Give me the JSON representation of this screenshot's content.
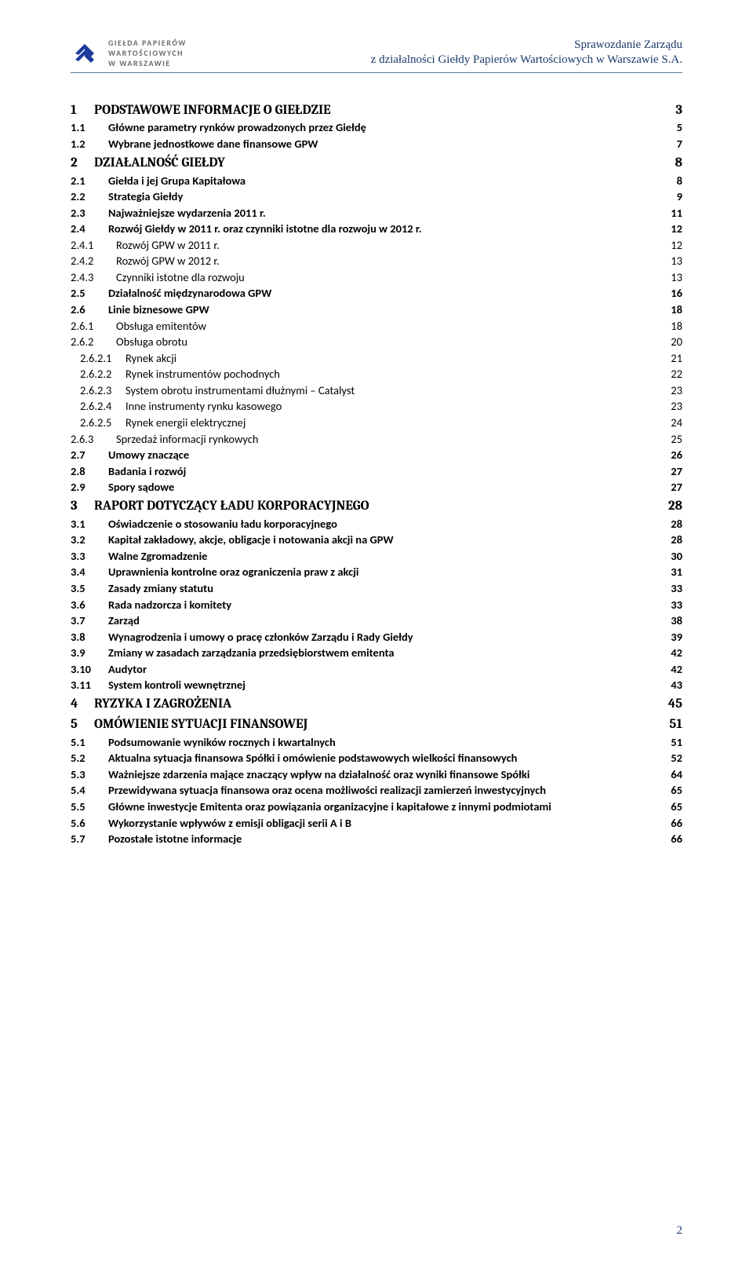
{
  "header": {
    "logo_lines": [
      "GIEŁDA PAPIERÓW",
      "WARTOŚCIOWYCH",
      "W WARSZAWIE"
    ],
    "right_line1": "Sprawozdanie Zarządu",
    "right_line2": "z działalności Giełdy Papierów Wartościowych w Warszawie S.A."
  },
  "toc": [
    {
      "lvl": 1,
      "num": "1",
      "title": "PODSTAWOWE INFORMACJE O GIEŁDZIE",
      "pg": "3"
    },
    {
      "lvl": 2,
      "num": "1.1",
      "title": "Główne parametry rynków prowadzonych przez Giełdę",
      "pg": "5"
    },
    {
      "lvl": 2,
      "num": "1.2",
      "title": "Wybrane jednostkowe dane finansowe GPW",
      "pg": "7"
    },
    {
      "lvl": 1,
      "num": "2",
      "title": "DZIAŁALNOŚĆ GIEŁDY",
      "pg": "8"
    },
    {
      "lvl": 2,
      "num": "2.1",
      "title": "Giełda i jej Grupa Kapitałowa",
      "pg": "8"
    },
    {
      "lvl": 2,
      "num": "2.2",
      "title": "Strategia Giełdy",
      "pg": "9"
    },
    {
      "lvl": 2,
      "num": "2.3",
      "title": "Najważniejsze wydarzenia 2011 r.",
      "pg": "11"
    },
    {
      "lvl": 2,
      "num": "2.4",
      "title": "Rozwój Giełdy w 2011 r. oraz czynniki istotne dla rozwoju w 2012 r.",
      "pg": "12"
    },
    {
      "lvl": 3,
      "num": "2.4.1",
      "title": "Rozwój GPW w 2011 r.",
      "pg": "12"
    },
    {
      "lvl": 3,
      "num": "2.4.2",
      "title": "Rozwój GPW w 2012 r.",
      "pg": "13"
    },
    {
      "lvl": 3,
      "num": "2.4.3",
      "title": "Czynniki istotne dla rozwoju",
      "pg": "13"
    },
    {
      "lvl": 2,
      "num": "2.5",
      "title": "Działalność międzynarodowa GPW",
      "pg": "16"
    },
    {
      "lvl": 2,
      "num": "2.6",
      "title": "Linie biznesowe GPW",
      "pg": "18"
    },
    {
      "lvl": 3,
      "num": "2.6.1",
      "title": "Obsługa emitentów",
      "pg": "18"
    },
    {
      "lvl": 3,
      "num": "2.6.2",
      "title": "Obsługa obrotu",
      "pg": "20"
    },
    {
      "lvl": 4,
      "num": "2.6.2.1",
      "title": "Rynek akcji",
      "pg": "21"
    },
    {
      "lvl": 4,
      "num": "2.6.2.2",
      "title": "Rynek instrumentów pochodnych",
      "pg": "22"
    },
    {
      "lvl": 4,
      "num": "2.6.2.3",
      "title": "System obrotu instrumentami dłużnymi – Catalyst",
      "pg": "23"
    },
    {
      "lvl": 4,
      "num": "2.6.2.4",
      "title": "Inne instrumenty rynku kasowego",
      "pg": "23"
    },
    {
      "lvl": 4,
      "num": "2.6.2.5",
      "title": "Rynek energii elektrycznej",
      "pg": "24"
    },
    {
      "lvl": 3,
      "num": "2.6.3",
      "title": "Sprzedaż informacji rynkowych",
      "pg": "25"
    },
    {
      "lvl": 2,
      "num": "2.7",
      "title": "Umowy znaczące",
      "pg": "26"
    },
    {
      "lvl": 2,
      "num": "2.8",
      "title": "Badania i rozwój",
      "pg": "27"
    },
    {
      "lvl": 2,
      "num": "2.9",
      "title": "Spory sądowe",
      "pg": "27"
    },
    {
      "lvl": 1,
      "num": "3",
      "title": "RAPORT DOTYCZĄCY ŁADU KORPORACYJNEGO",
      "pg": "28"
    },
    {
      "lvl": 2,
      "num": "3.1",
      "title": "Oświadczenie o stosowaniu ładu korporacyjnego",
      "pg": "28"
    },
    {
      "lvl": 2,
      "num": "3.2",
      "title": "Kapitał zakładowy, akcje, obligacje i notowania akcji na GPW",
      "pg": "28"
    },
    {
      "lvl": 2,
      "num": "3.3",
      "title": "Walne Zgromadzenie",
      "pg": "30"
    },
    {
      "lvl": 2,
      "num": "3.4",
      "title": "Uprawnienia kontrolne oraz ograniczenia praw z akcji",
      "pg": "31"
    },
    {
      "lvl": 2,
      "num": "3.5",
      "title": "Zasady zmiany statutu",
      "pg": "33"
    },
    {
      "lvl": 2,
      "num": "3.6",
      "title": "Rada nadzorcza i komitety",
      "pg": "33"
    },
    {
      "lvl": 2,
      "num": "3.7",
      "title": "Zarząd",
      "pg": "38"
    },
    {
      "lvl": 2,
      "num": "3.8",
      "title": "Wynagrodzenia i umowy o pracę członków Zarządu i Rady Giełdy",
      "pg": "39"
    },
    {
      "lvl": 2,
      "num": "3.9",
      "title": "Zmiany w zasadach zarządzania przedsiębiorstwem emitenta",
      "pg": "42"
    },
    {
      "lvl": 2,
      "num": "3.10",
      "title": "Audytor",
      "pg": "42"
    },
    {
      "lvl": 2,
      "num": "3.11",
      "title": "System kontroli wewnętrznej",
      "pg": "43"
    },
    {
      "lvl": 1,
      "num": "4",
      "title": "RYZYKA I ZAGROŻENIA",
      "pg": "45"
    },
    {
      "lvl": 1,
      "num": "5",
      "title": "OMÓWIENIE SYTUACJI FINANSOWEJ",
      "pg": "51"
    },
    {
      "lvl": 2,
      "num": "5.1",
      "title": "Podsumowanie wyników rocznych i kwartalnych",
      "pg": "51"
    },
    {
      "lvl": 2,
      "num": "5.2",
      "title": "Aktualna sytuacja finansowa Spółki i omówienie podstawowych wielkości finansowych",
      "pg": "52"
    },
    {
      "lvl": 2,
      "num": "5.3",
      "title": "Ważniejsze zdarzenia mające znaczący wpływ na działalność oraz wyniki finansowe Spółki",
      "pg": "64"
    },
    {
      "lvl": 2,
      "num": "5.4",
      "title": "Przewidywana sytuacja finansowa oraz ocena możliwości realizacji zamierzeń inwestycyjnych",
      "pg": "65"
    },
    {
      "lvl": 2,
      "num": "5.5",
      "title": "Główne inwestycje Emitenta oraz powiązania organizacyjne i kapitałowe z innymi podmiotami",
      "pg": "65"
    },
    {
      "lvl": 2,
      "num": "5.6",
      "title": "Wykorzystanie wpływów z emisji obligacji serii A i B",
      "pg": "66"
    },
    {
      "lvl": 2,
      "num": "5.7",
      "title": "Pozostałe istotne informacje",
      "pg": "66"
    }
  ],
  "footer_page": "2",
  "colors": {
    "header_text": "#1a3a6a",
    "logo_text": "#6a6a6a",
    "logo_fill": "#1a3a9a",
    "divider": "#5a7a9a"
  }
}
